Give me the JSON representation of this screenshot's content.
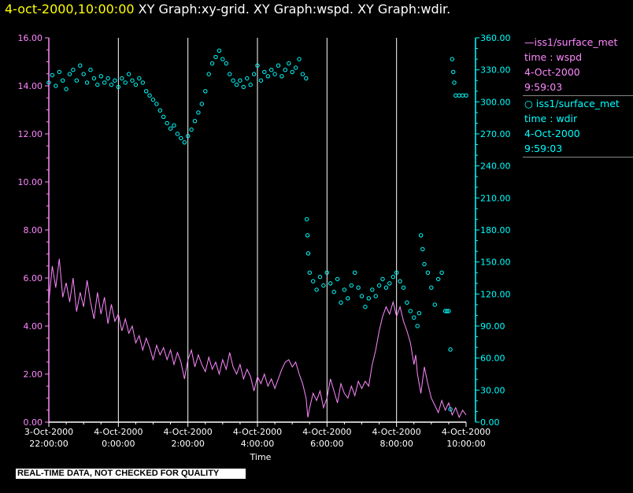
{
  "header": {
    "timestamp": "4-oct-2000,10:00:00",
    "graph_titles": "XY Graph:xy-grid.  XY Graph:wspd.  XY Graph:wdir."
  },
  "colors": {
    "wspd": "#ff88ff",
    "wdir": "#00ffff",
    "timestamp": "#ffff00",
    "grid": "#ffffff"
  },
  "legend": [
    {
      "series": "wspd",
      "marker": "line",
      "source": "iss1/surface_met",
      "field": "time : wspd",
      "date": "4-Oct-2000",
      "time": "9:59:03"
    },
    {
      "series": "wdir",
      "marker": "circle",
      "source": "iss1/surface_met",
      "field": "time : wdir",
      "date": "4-Oct-2000",
      "time": "9:59:03"
    }
  ],
  "quality_notice": "REAL-TIME DATA, NOT CHECKED FOR QUALITY",
  "chart_data": {
    "type": "line",
    "xlabel": "Time",
    "x_range_hours": [
      0,
      12
    ],
    "x_ticks": [
      {
        "h": 0,
        "date": "3-Oct-2000",
        "time": "22:00:00"
      },
      {
        "h": 2,
        "date": "4-Oct-2000",
        "time": "0:00:00"
      },
      {
        "h": 4,
        "date": "4-Oct-2000",
        "time": "2:00:00"
      },
      {
        "h": 6,
        "date": "4-Oct-2000",
        "time": "4:00:00"
      },
      {
        "h": 8,
        "date": "4-Oct-2000",
        "time": "6:00:00"
      },
      {
        "h": 10,
        "date": "4-Oct-2000",
        "time": "8:00:00"
      },
      {
        "h": 12,
        "date": "4-Oct-2000",
        "time": "10:00:00"
      }
    ],
    "left_axis": {
      "series": "wspd",
      "range": [
        0,
        16
      ],
      "ticks": [
        "0.00",
        "2.00",
        "4.00",
        "6.00",
        "8.00",
        "10.00",
        "12.00",
        "14.00",
        "16.00"
      ]
    },
    "right_axis": {
      "series": "wdir",
      "range": [
        0,
        360
      ],
      "ticks": [
        "0.00",
        "30.00",
        "60.00",
        "90.00",
        "120.00",
        "150.00",
        "180.00",
        "210.00",
        "240.00",
        "270.00",
        "300.00",
        "330.00",
        "360.00"
      ]
    },
    "vertical_grid": true,
    "legend_position": "right",
    "series": [
      {
        "name": "wspd",
        "style": "line",
        "points": [
          [
            0.0,
            5.0
          ],
          [
            0.1,
            6.5
          ],
          [
            0.2,
            5.6
          ],
          [
            0.3,
            6.8
          ],
          [
            0.4,
            5.2
          ],
          [
            0.5,
            5.8
          ],
          [
            0.6,
            5.0
          ],
          [
            0.7,
            6.0
          ],
          [
            0.8,
            4.6
          ],
          [
            0.9,
            5.4
          ],
          [
            1.0,
            4.8
          ],
          [
            1.1,
            5.9
          ],
          [
            1.2,
            5.0
          ],
          [
            1.3,
            4.3
          ],
          [
            1.4,
            5.4
          ],
          [
            1.5,
            4.5
          ],
          [
            1.6,
            5.2
          ],
          [
            1.7,
            4.1
          ],
          [
            1.8,
            4.9
          ],
          [
            1.9,
            4.2
          ],
          [
            2.0,
            4.5
          ],
          [
            2.1,
            3.8
          ],
          [
            2.2,
            4.3
          ],
          [
            2.3,
            3.7
          ],
          [
            2.4,
            4.0
          ],
          [
            2.5,
            3.3
          ],
          [
            2.6,
            3.6
          ],
          [
            2.7,
            3.0
          ],
          [
            2.8,
            3.5
          ],
          [
            2.9,
            3.1
          ],
          [
            3.0,
            2.6
          ],
          [
            3.1,
            3.2
          ],
          [
            3.2,
            2.8
          ],
          [
            3.3,
            3.1
          ],
          [
            3.4,
            2.6
          ],
          [
            3.5,
            3.0
          ],
          [
            3.6,
            2.4
          ],
          [
            3.7,
            2.9
          ],
          [
            3.8,
            2.5
          ],
          [
            3.9,
            1.8
          ],
          [
            4.0,
            2.6
          ],
          [
            4.1,
            3.0
          ],
          [
            4.2,
            2.3
          ],
          [
            4.3,
            2.8
          ],
          [
            4.4,
            2.4
          ],
          [
            4.5,
            2.1
          ],
          [
            4.6,
            2.7
          ],
          [
            4.7,
            2.2
          ],
          [
            4.8,
            2.5
          ],
          [
            4.9,
            2.0
          ],
          [
            5.0,
            2.6
          ],
          [
            5.1,
            2.2
          ],
          [
            5.2,
            2.9
          ],
          [
            5.3,
            2.3
          ],
          [
            5.4,
            2.0
          ],
          [
            5.5,
            2.4
          ],
          [
            5.6,
            1.8
          ],
          [
            5.7,
            2.2
          ],
          [
            5.8,
            1.9
          ],
          [
            5.9,
            1.3
          ],
          [
            6.0,
            1.9
          ],
          [
            6.1,
            1.6
          ],
          [
            6.2,
            2.0
          ],
          [
            6.3,
            1.5
          ],
          [
            6.4,
            1.8
          ],
          [
            6.5,
            1.4
          ],
          [
            6.6,
            1.8
          ],
          [
            6.7,
            2.2
          ],
          [
            6.8,
            2.5
          ],
          [
            6.9,
            2.6
          ],
          [
            7.0,
            2.3
          ],
          [
            7.1,
            2.5
          ],
          [
            7.2,
            2.0
          ],
          [
            7.3,
            1.6
          ],
          [
            7.4,
            1.0
          ],
          [
            7.45,
            0.2
          ],
          [
            7.5,
            0.6
          ],
          [
            7.6,
            1.2
          ],
          [
            7.7,
            0.9
          ],
          [
            7.8,
            1.3
          ],
          [
            7.9,
            0.6
          ],
          [
            8.0,
            1.0
          ],
          [
            8.1,
            1.8
          ],
          [
            8.2,
            1.3
          ],
          [
            8.3,
            0.8
          ],
          [
            8.4,
            1.6
          ],
          [
            8.5,
            1.2
          ],
          [
            8.6,
            1.0
          ],
          [
            8.7,
            1.5
          ],
          [
            8.8,
            1.1
          ],
          [
            8.9,
            1.7
          ],
          [
            9.0,
            1.4
          ],
          [
            9.1,
            1.7
          ],
          [
            9.2,
            1.5
          ],
          [
            9.3,
            2.4
          ],
          [
            9.4,
            3.0
          ],
          [
            9.5,
            3.8
          ],
          [
            9.6,
            4.4
          ],
          [
            9.7,
            4.8
          ],
          [
            9.8,
            4.5
          ],
          [
            9.9,
            5.0
          ],
          [
            10.0,
            4.4
          ],
          [
            10.1,
            4.8
          ],
          [
            10.2,
            4.2
          ],
          [
            10.3,
            3.8
          ],
          [
            10.4,
            3.3
          ],
          [
            10.5,
            2.4
          ],
          [
            10.55,
            2.8
          ],
          [
            10.6,
            2.0
          ],
          [
            10.7,
            1.2
          ],
          [
            10.8,
            2.3
          ],
          [
            10.9,
            1.6
          ],
          [
            11.0,
            1.0
          ],
          [
            11.1,
            0.7
          ],
          [
            11.2,
            0.4
          ],
          [
            11.3,
            0.9
          ],
          [
            11.4,
            0.5
          ],
          [
            11.5,
            0.8
          ],
          [
            11.6,
            0.3
          ],
          [
            11.7,
            0.6
          ],
          [
            11.8,
            0.2
          ],
          [
            11.9,
            0.5
          ],
          [
            12.0,
            0.3
          ]
        ]
      },
      {
        "name": "wdir",
        "style": "circle",
        "points": [
          [
            0.0,
            318
          ],
          [
            0.1,
            325
          ],
          [
            0.2,
            315
          ],
          [
            0.3,
            328
          ],
          [
            0.4,
            320
          ],
          [
            0.5,
            312
          ],
          [
            0.6,
            326
          ],
          [
            0.7,
            330
          ],
          [
            0.8,
            320
          ],
          [
            0.9,
            334
          ],
          [
            1.0,
            326
          ],
          [
            1.1,
            318
          ],
          [
            1.2,
            330
          ],
          [
            1.3,
            322
          ],
          [
            1.4,
            316
          ],
          [
            1.5,
            324
          ],
          [
            1.6,
            318
          ],
          [
            1.7,
            322
          ],
          [
            1.8,
            316
          ],
          [
            1.9,
            320
          ],
          [
            2.0,
            314
          ],
          [
            2.1,
            322
          ],
          [
            2.2,
            318
          ],
          [
            2.3,
            326
          ],
          [
            2.4,
            320
          ],
          [
            2.5,
            316
          ],
          [
            2.6,
            322
          ],
          [
            2.7,
            318
          ],
          [
            2.8,
            310
          ],
          [
            2.9,
            306
          ],
          [
            3.0,
            302
          ],
          [
            3.1,
            298
          ],
          [
            3.2,
            292
          ],
          [
            3.3,
            286
          ],
          [
            3.4,
            280
          ],
          [
            3.5,
            275
          ],
          [
            3.6,
            278
          ],
          [
            3.7,
            270
          ],
          [
            3.8,
            266
          ],
          [
            3.9,
            262
          ],
          [
            4.0,
            268
          ],
          [
            4.1,
            274
          ],
          [
            4.2,
            282
          ],
          [
            4.3,
            290
          ],
          [
            4.4,
            298
          ],
          [
            4.5,
            310
          ],
          [
            4.6,
            326
          ],
          [
            4.7,
            336
          ],
          [
            4.8,
            342
          ],
          [
            4.9,
            348
          ],
          [
            5.0,
            340
          ],
          [
            5.1,
            336
          ],
          [
            5.2,
            326
          ],
          [
            5.3,
            320
          ],
          [
            5.4,
            316
          ],
          [
            5.5,
            320
          ],
          [
            5.6,
            314
          ],
          [
            5.7,
            322
          ],
          [
            5.8,
            316
          ],
          [
            5.9,
            326
          ],
          [
            6.0,
            334
          ],
          [
            6.1,
            320
          ],
          [
            6.2,
            328
          ],
          [
            6.3,
            324
          ],
          [
            6.4,
            330
          ],
          [
            6.5,
            326
          ],
          [
            6.6,
            334
          ],
          [
            6.7,
            324
          ],
          [
            6.8,
            330
          ],
          [
            6.9,
            336
          ],
          [
            7.0,
            328
          ],
          [
            7.1,
            332
          ],
          [
            7.2,
            340
          ],
          [
            7.3,
            326
          ],
          [
            7.4,
            322
          ],
          [
            7.42,
            190
          ],
          [
            7.44,
            175
          ],
          [
            7.46,
            158
          ],
          [
            7.5,
            140
          ],
          [
            7.6,
            132
          ],
          [
            7.7,
            124
          ],
          [
            7.8,
            136
          ],
          [
            7.9,
            128
          ],
          [
            8.0,
            140
          ],
          [
            8.1,
            130
          ],
          [
            8.2,
            122
          ],
          [
            8.3,
            134
          ],
          [
            8.4,
            112
          ],
          [
            8.5,
            124
          ],
          [
            8.6,
            116
          ],
          [
            8.7,
            128
          ],
          [
            8.8,
            140
          ],
          [
            8.9,
            126
          ],
          [
            9.0,
            118
          ],
          [
            9.1,
            108
          ],
          [
            9.2,
            116
          ],
          [
            9.3,
            124
          ],
          [
            9.4,
            118
          ],
          [
            9.5,
            128
          ],
          [
            9.6,
            134
          ],
          [
            9.7,
            126
          ],
          [
            9.8,
            130
          ],
          [
            9.9,
            136
          ],
          [
            10.0,
            140
          ],
          [
            10.1,
            132
          ],
          [
            10.2,
            126
          ],
          [
            10.3,
            112
          ],
          [
            10.4,
            104
          ],
          [
            10.5,
            98
          ],
          [
            10.6,
            90
          ],
          [
            10.65,
            102
          ],
          [
            10.7,
            175
          ],
          [
            10.75,
            162
          ],
          [
            10.8,
            148
          ],
          [
            10.9,
            140
          ],
          [
            11.0,
            126
          ],
          [
            11.1,
            110
          ],
          [
            11.2,
            134
          ],
          [
            11.3,
            140
          ],
          [
            11.4,
            104
          ],
          [
            11.45,
            104
          ],
          [
            11.5,
            104
          ],
          [
            11.55,
            68
          ],
          [
            11.6,
            340
          ],
          [
            11.63,
            328
          ],
          [
            11.66,
            318
          ],
          [
            11.7,
            306
          ],
          [
            11.8,
            306
          ],
          [
            11.9,
            306
          ],
          [
            12.0,
            306
          ],
          [
            11.55,
            12
          ]
        ]
      }
    ]
  }
}
